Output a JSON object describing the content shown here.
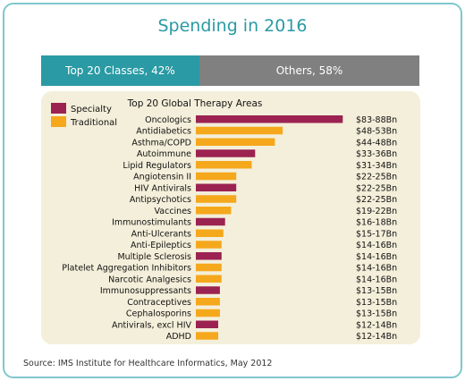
{
  "chart_data": {
    "type": "bar",
    "orientation": "horizontal",
    "title": "Spending in 2016",
    "subtitle": "Top 20 Global Therapy Areas",
    "split": {
      "left_label": "Top 20 Classes, 42%",
      "left_value": 42,
      "right_label": "Others, 58%",
      "right_value": 58,
      "left_color": "#2a9aa4",
      "right_color": "#808080"
    },
    "legend": {
      "position": "top-left",
      "entries": [
        {
          "name": "Specialty",
          "color": "#9b2251"
        },
        {
          "name": "Traditional",
          "color": "#f5a81c"
        }
      ]
    },
    "categories": [
      "Oncologics",
      "Antidiabetics",
      "Asthma/COPD",
      "Autoimmune",
      "Lipid Regulators",
      "Angiotensin II",
      "HIV Antivirals",
      "Antipsychotics",
      "Vaccines",
      "Immunostimulants",
      "Anti-Ulcerants",
      "Anti-Epileptics",
      "Multiple Sclerosis",
      "Platelet Aggregation Inhibitors",
      "Narcotic Analgesics",
      "Immunosuppressants",
      "Contraceptives",
      "Cephalosporins",
      "Antivirals, excl HIV",
      "ADHD"
    ],
    "values": [
      85.5,
      50.5,
      46,
      34.5,
      32.5,
      23.5,
      23.5,
      23.5,
      20.5,
      17,
      16,
      15,
      15,
      15,
      15,
      14,
      14,
      14,
      13,
      13
    ],
    "types": [
      "Specialty",
      "Traditional",
      "Traditional",
      "Specialty",
      "Traditional",
      "Traditional",
      "Specialty",
      "Traditional",
      "Traditional",
      "Specialty",
      "Traditional",
      "Traditional",
      "Specialty",
      "Traditional",
      "Traditional",
      "Specialty",
      "Traditional",
      "Traditional",
      "Specialty",
      "Traditional"
    ],
    "value_labels": [
      "$83-88Bn",
      "$48-53Bn",
      "$44-48Bn",
      "$33-36Bn",
      "$31-34Bn",
      "$22-25Bn",
      "$22-25Bn",
      "$22-25Bn",
      "$19-22Bn",
      "$16-18Bn",
      "$15-17Bn",
      "$14-16Bn",
      "$14-16Bn",
      "$14-16Bn",
      "$14-16Bn",
      "$13-15Bn",
      "$13-15Bn",
      "$13-15Bn",
      "$12-14Bn",
      "$12-14Bn"
    ],
    "xlim": [
      0,
      90
    ],
    "grid": false
  },
  "source": "Source: IMS Institute for Healthcare Informatics, May 2012"
}
